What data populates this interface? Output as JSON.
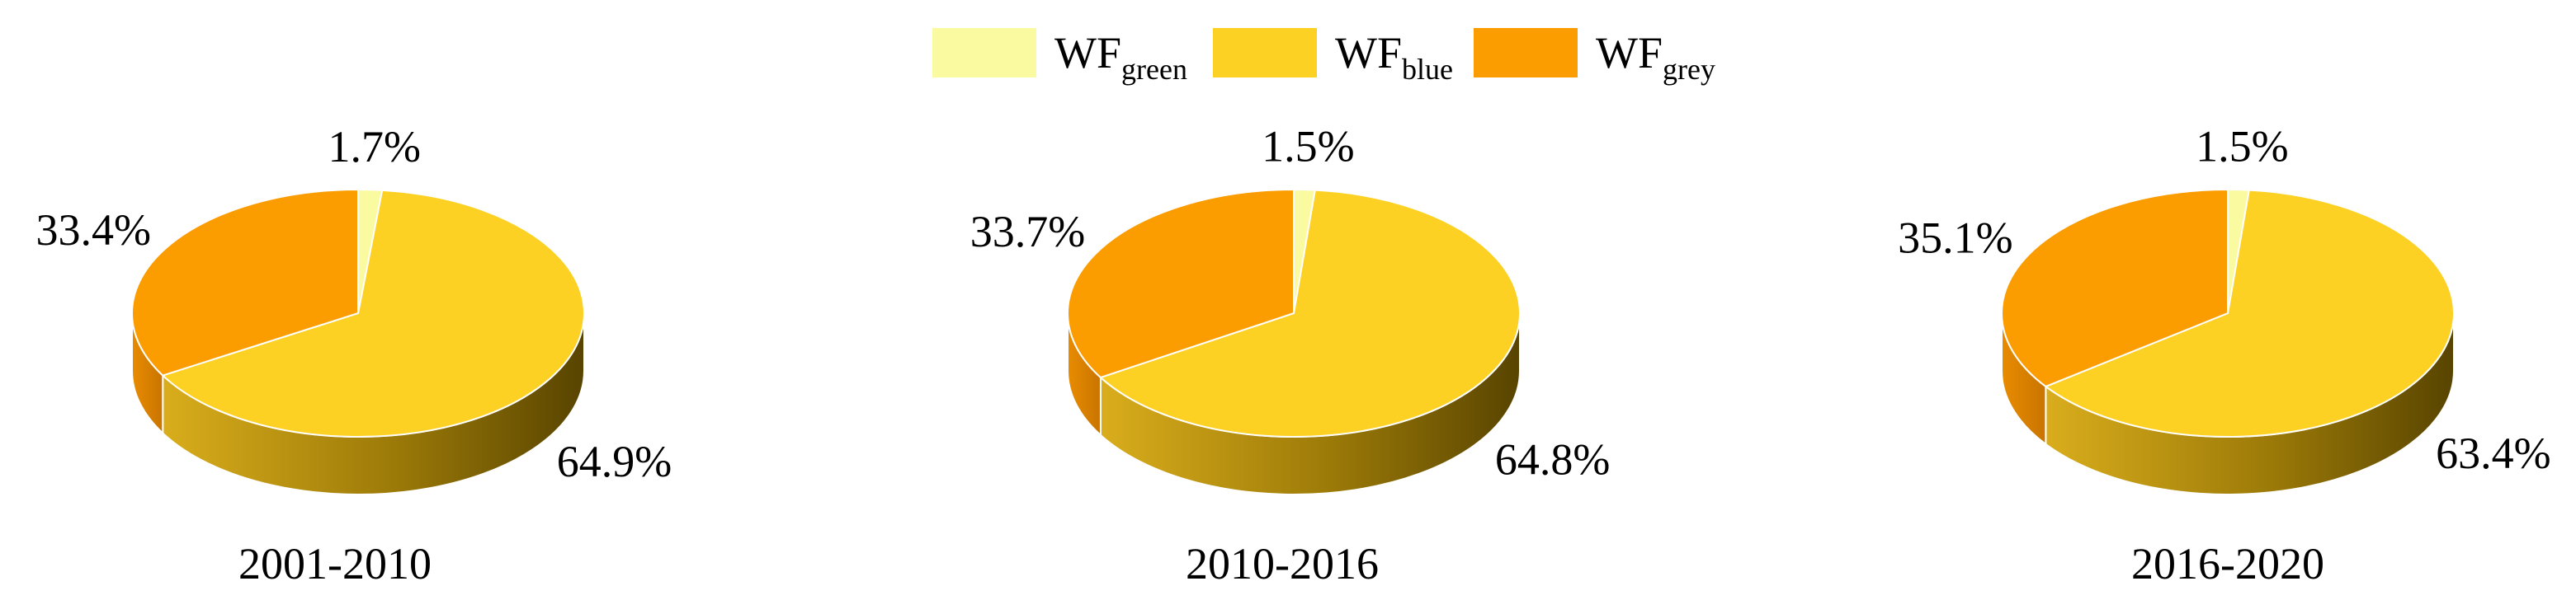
{
  "legend": {
    "entries": [
      {
        "text": "WF",
        "subscript": "green",
        "color": "#fafaa0"
      },
      {
        "text": "WF",
        "subscript": "blue",
        "color": "#fcd123"
      },
      {
        "text": "WF",
        "subscript": "grey",
        "color": "#fb9c00"
      }
    ]
  },
  "chart_data": [
    {
      "type": "pie",
      "title": "2001-2010",
      "values": [
        1.7,
        64.9,
        33.4
      ],
      "value_labels": [
        "1.7%",
        "64.9%",
        "33.4%"
      ]
    },
    {
      "type": "pie",
      "title": "2010-2016",
      "values": [
        1.5,
        64.8,
        33.7
      ],
      "value_labels": [
        "1.5%",
        "64.8%",
        "33.7%"
      ]
    },
    {
      "type": "pie",
      "title": "2016-2020",
      "values": [
        1.5,
        63.4,
        35.1
      ],
      "value_labels": [
        "1.5%",
        "63.4%",
        "35.1%"
      ]
    }
  ]
}
